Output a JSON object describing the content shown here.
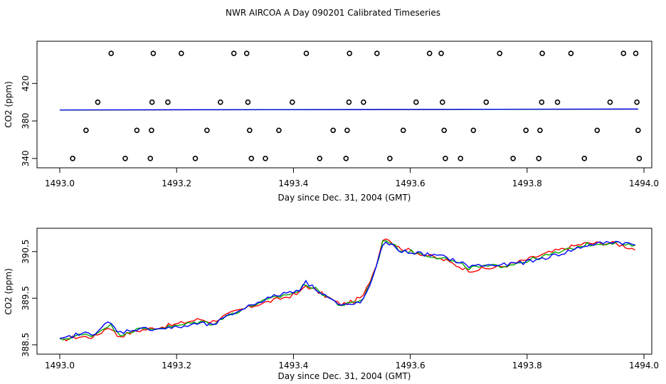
{
  "title": "NWR AIRCOA A  Day 090201  Calibrated Timeseries",
  "chart_data": [
    {
      "type": "scatter",
      "xlabel": "Day since Dec. 31, 2004 (GMT)",
      "ylabel": "CO2 (ppm)",
      "xlim": [
        1493.0,
        1494.0
      ],
      "ylim": [
        330,
        465
      ],
      "x_ticks": [
        "1493.0",
        "1493.2",
        "1493.4",
        "1493.6",
        "1493.8",
        "1494.0"
      ],
      "y_ticks": [
        "340",
        "380",
        "420"
      ],
      "grid": false,
      "points": [
        [
          1493.022,
          340
        ],
        [
          1493.045,
          370
        ],
        [
          1493.065,
          400
        ],
        [
          1493.088,
          452
        ],
        [
          1493.112,
          340
        ],
        [
          1493.132,
          370
        ],
        [
          1493.155,
          340
        ],
        [
          1493.157,
          370
        ],
        [
          1493.158,
          400
        ],
        [
          1493.16,
          452
        ],
        [
          1493.185,
          400
        ],
        [
          1493.208,
          452
        ],
        [
          1493.232,
          340
        ],
        [
          1493.252,
          370
        ],
        [
          1493.275,
          400
        ],
        [
          1493.298,
          452
        ],
        [
          1493.32,
          452
        ],
        [
          1493.322,
          400
        ],
        [
          1493.325,
          370
        ],
        [
          1493.328,
          340
        ],
        [
          1493.352,
          340
        ],
        [
          1493.375,
          370
        ],
        [
          1493.398,
          400
        ],
        [
          1493.422,
          452
        ],
        [
          1493.445,
          340
        ],
        [
          1493.468,
          370
        ],
        [
          1493.49,
          340
        ],
        [
          1493.492,
          370
        ],
        [
          1493.495,
          400
        ],
        [
          1493.496,
          452
        ],
        [
          1493.52,
          400
        ],
        [
          1493.543,
          452
        ],
        [
          1493.565,
          340
        ],
        [
          1493.588,
          370
        ],
        [
          1493.61,
          400
        ],
        [
          1493.633,
          452
        ],
        [
          1493.653,
          452
        ],
        [
          1493.655,
          400
        ],
        [
          1493.658,
          370
        ],
        [
          1493.66,
          340
        ],
        [
          1493.686,
          340
        ],
        [
          1493.708,
          370
        ],
        [
          1493.73,
          400
        ],
        [
          1493.753,
          452
        ],
        [
          1493.776,
          340
        ],
        [
          1493.798,
          370
        ],
        [
          1493.82,
          340
        ],
        [
          1493.822,
          370
        ],
        [
          1493.825,
          400
        ],
        [
          1493.826,
          452
        ],
        [
          1493.852,
          400
        ],
        [
          1493.875,
          452
        ],
        [
          1493.898,
          340
        ],
        [
          1493.92,
          370
        ],
        [
          1493.942,
          400
        ],
        [
          1493.965,
          452
        ],
        [
          1493.986,
          452
        ],
        [
          1493.988,
          400
        ],
        [
          1493.99,
          370
        ],
        [
          1493.992,
          340
        ]
      ],
      "series": [
        {
          "color": "#ff0000",
          "values": [
            [
              1493.0,
              391.6
            ],
            [
              1493.99,
              392.6
            ]
          ]
        },
        {
          "color": "#00aa00",
          "values": [
            [
              1493.0,
              391.6
            ],
            [
              1493.99,
              392.6
            ]
          ]
        },
        {
          "color": "#0000ff",
          "values": [
            [
              1493.0,
              391.7
            ],
            [
              1493.99,
              392.7
            ]
          ]
        }
      ]
    },
    {
      "type": "line",
      "xlabel": "Day since Dec. 31, 2004 (GMT)",
      "ylabel": "CO2 (ppm)",
      "xlim": [
        1493.0,
        1494.0
      ],
      "ylim": [
        388.3,
        391.0
      ],
      "x_ticks": [
        "1493.0",
        "1493.2",
        "1493.4",
        "1493.6",
        "1493.8",
        "1494.0"
      ],
      "y_ticks": [
        "388.5",
        "389.5",
        "390.5"
      ],
      "grid": false,
      "control_points": [
        [
          1493.0,
          388.6
        ],
        [
          1493.03,
          388.7
        ],
        [
          1493.06,
          388.72
        ],
        [
          1493.085,
          388.95
        ],
        [
          1493.1,
          388.72
        ],
        [
          1493.13,
          388.82
        ],
        [
          1493.16,
          388.85
        ],
        [
          1493.2,
          388.9
        ],
        [
          1493.24,
          389.0
        ],
        [
          1493.26,
          388.95
        ],
        [
          1493.3,
          389.2
        ],
        [
          1493.34,
          389.4
        ],
        [
          1493.38,
          389.55
        ],
        [
          1493.41,
          389.65
        ],
        [
          1493.42,
          389.82
        ],
        [
          1493.45,
          389.6
        ],
        [
          1493.48,
          389.35
        ],
        [
          1493.5,
          389.38
        ],
        [
          1493.52,
          389.5
        ],
        [
          1493.54,
          390.1
        ],
        [
          1493.555,
          390.8
        ],
        [
          1493.58,
          390.55
        ],
        [
          1493.62,
          390.45
        ],
        [
          1493.66,
          390.35
        ],
        [
          1493.7,
          390.15
        ],
        [
          1493.76,
          390.2
        ],
        [
          1493.8,
          390.3
        ],
        [
          1493.86,
          390.5
        ],
        [
          1493.9,
          390.65
        ],
        [
          1493.95,
          390.7
        ],
        [
          1493.985,
          390.6
        ]
      ],
      "series": [
        {
          "color": "#ff0000",
          "offset": -0.05
        },
        {
          "color": "#00aa00",
          "offset": 0.0
        },
        {
          "color": "#0000ff",
          "offset": 0.04
        }
      ]
    }
  ]
}
